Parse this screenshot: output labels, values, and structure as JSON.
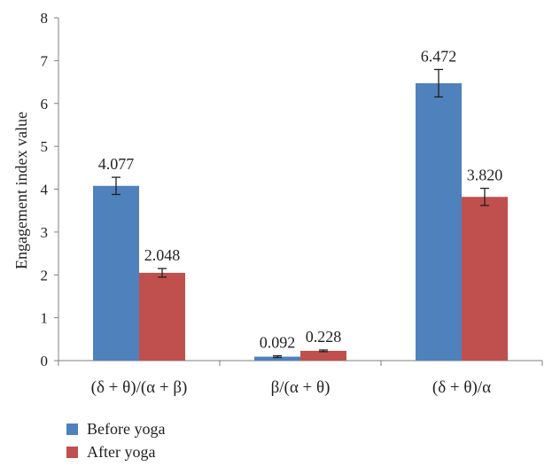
{
  "chart_data": {
    "type": "bar",
    "categories": [
      "(δ + θ)/(α + β)",
      "β/(α + θ)",
      "(δ + θ)/α"
    ],
    "series": [
      {
        "name": "Before yoga",
        "color": "#4f81bd",
        "values": [
          4.077,
          0.092,
          6.472
        ],
        "labels": [
          "4.077",
          "0.092",
          "6.472"
        ],
        "errors": [
          0.2,
          0.02,
          0.32
        ]
      },
      {
        "name": "After yoga",
        "color": "#c0504d",
        "values": [
          2.048,
          0.228,
          3.82
        ],
        "labels": [
          "2.048",
          "0.228",
          "3.820"
        ],
        "errors": [
          0.1,
          0.02,
          0.2
        ]
      }
    ],
    "xlabel": "",
    "ylabel": "Engagement index value",
    "ylim": [
      0,
      8
    ],
    "yticks": [
      "0",
      "1",
      "2",
      "3",
      "4",
      "5",
      "6",
      "7",
      "8"
    ],
    "grid": false,
    "legend_position": "bottom-left"
  }
}
